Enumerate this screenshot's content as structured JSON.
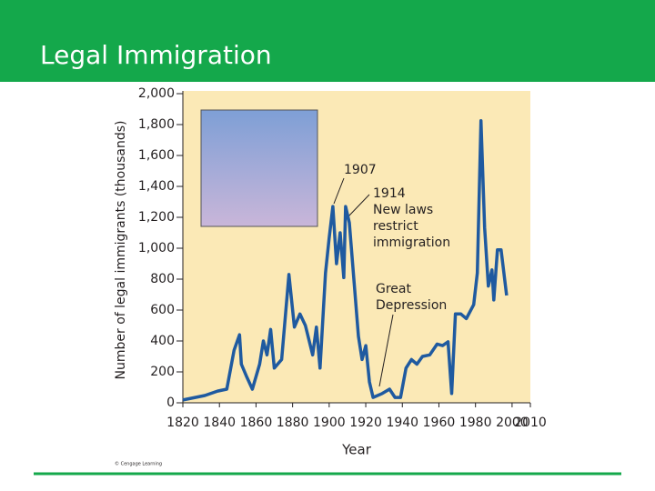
{
  "header": {
    "title": "Legal Immigration"
  },
  "chart_data": {
    "type": "line",
    "xlabel": "Year",
    "ylabel": "Number of legal immigrants (thousands)",
    "credit": "© Cengage Learning",
    "annotations": [
      [
        "1907"
      ],
      [
        "1914",
        "New laws",
        "restrict",
        "immigration"
      ],
      [
        "Great",
        "Depression"
      ]
    ],
    "x": [
      1820,
      1832,
      1839,
      1844,
      1848,
      1851,
      1852,
      1855,
      1858,
      1862,
      1864,
      1866,
      1868,
      1870,
      1874,
      1878,
      1881,
      1884,
      1887,
      1891,
      1893,
      1895,
      1898,
      1900,
      1902,
      1904,
      1906,
      1908,
      1909,
      1911,
      1914,
      1916,
      1918,
      1920,
      1922,
      1924,
      1929,
      1933,
      1936,
      1939,
      1942,
      1945,
      1948,
      1951,
      1955,
      1959,
      1962,
      1965,
      1967,
      1969,
      1972,
      1975,
      1979,
      1981,
      1983,
      1985,
      1987,
      1989,
      1990,
      1992,
      1994,
      1997
    ],
    "series": [
      {
        "color": "#1f5aa0",
        "values": [
          18,
          47,
          76,
          88,
          340,
          440,
          250,
          165,
          88,
          250,
          400,
          310,
          475,
          225,
          280,
          830,
          490,
          575,
          500,
          310,
          490,
          225,
          840,
          1065,
          1270,
          900,
          1100,
          810,
          1270,
          1165,
          725,
          430,
          280,
          370,
          135,
          35,
          60,
          88,
          35,
          35,
          225,
          280,
          250,
          300,
          310,
          380,
          370,
          395,
          60,
          575,
          575,
          545,
          635,
          840,
          1825,
          1135,
          755,
          860,
          665,
          990,
          990,
          695
        ]
      }
    ],
    "xlim": [
      1820,
      2010
    ],
    "xticks": [
      1820,
      1840,
      1860,
      1880,
      1900,
      1920,
      1940,
      1960,
      1980,
      2000,
      2010
    ],
    "ylim": [
      0,
      2000
    ],
    "yticks": [
      0,
      200,
      400,
      600,
      800,
      {
        "value": 1000,
        "label": "1,000"
      },
      {
        "value": 1200,
        "label": "1,200"
      },
      {
        "value": 1400,
        "label": "1,400"
      },
      {
        "value": 1600,
        "label": "1,600"
      },
      {
        "value": 1800,
        "label": "1,800"
      },
      {
        "value": 2000,
        "label": "2,000"
      }
    ]
  }
}
